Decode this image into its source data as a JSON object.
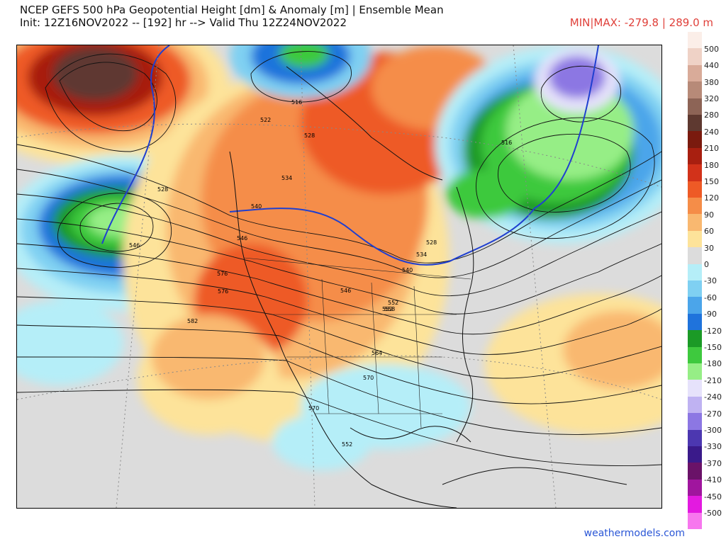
{
  "header": {
    "title_line1": "NCEP GEFS 500 hPa Geopotential Height [dm] & Anomaly [m] | Ensemble Mean",
    "title_line2": "Init: 12Z16NOV2022 -- [192] hr --> Valid Thu 12Z24NOV2022",
    "minmax": "MIN|MAX: -279.8 | 289.0 m"
  },
  "footer": {
    "credit": "weathermodels.com"
  },
  "colorbar": {
    "levels": [
      {
        "label": "500",
        "color": "#fbeee8"
      },
      {
        "label": "440",
        "color": "#efd2c6"
      },
      {
        "label": "380",
        "color": "#d9ab99"
      },
      {
        "label": "320",
        "color": "#b78a78"
      },
      {
        "label": "280",
        "color": "#8d6456"
      },
      {
        "label": "240",
        "color": "#5e3930"
      },
      {
        "label": "210",
        "color": "#7a1a0e"
      },
      {
        "label": "180",
        "color": "#a81f10"
      },
      {
        "label": "150",
        "color": "#d2321a"
      },
      {
        "label": "120",
        "color": "#ee5a26"
      },
      {
        "label": "90",
        "color": "#f58d48"
      },
      {
        "label": "60",
        "color": "#f9b870"
      },
      {
        "label": "30",
        "color": "#fde39a"
      },
      {
        "label": "0",
        "color": "#dcdcdc"
      },
      {
        "label": "-30",
        "color": "#b5eef8"
      },
      {
        "label": "-60",
        "color": "#7fd0f2"
      },
      {
        "label": "-90",
        "color": "#4ba5ea"
      },
      {
        "label": "-120",
        "color": "#1f73dc"
      },
      {
        "label": "-150",
        "color": "#1b9a26"
      },
      {
        "label": "-180",
        "color": "#3ec93e"
      },
      {
        "label": "-210",
        "color": "#96ee86"
      },
      {
        "label": "-240",
        "color": "#e6e2fb"
      },
      {
        "label": "-270",
        "color": "#bfb2f2"
      },
      {
        "label": "-300",
        "color": "#8c77e3"
      },
      {
        "label": "-330",
        "color": "#4c37b0"
      },
      {
        "label": "-370",
        "color": "#3a1a8a"
      },
      {
        "label": "-410",
        "color": "#6a1268"
      },
      {
        "label": "-450",
        "color": "#a0159e"
      },
      {
        "label": "-500",
        "color": "#e31ae0"
      },
      {
        "label": "",
        "color": "#f777ee"
      }
    ]
  },
  "map": {
    "contour_labels": [
      "516",
      "522",
      "528",
      "534",
      "540",
      "546",
      "552",
      "558",
      "564",
      "570",
      "576",
      "582",
      "528",
      "546",
      "516",
      "528",
      "552",
      "534",
      "540",
      "546",
      "552",
      "570",
      "576"
    ],
    "zero_label": "0",
    "highlight_color": "#1f3fd0"
  }
}
